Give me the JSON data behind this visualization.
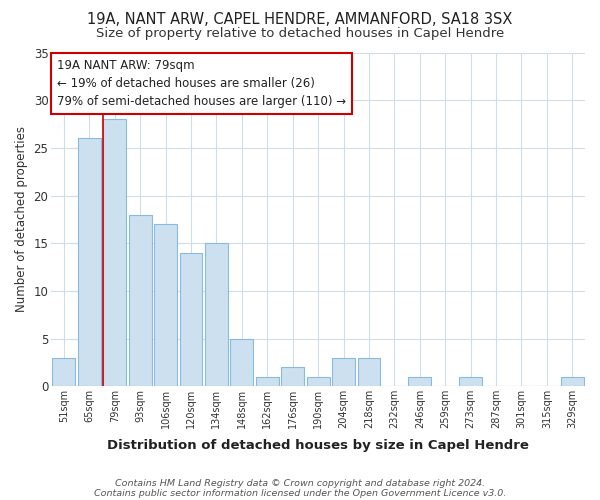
{
  "title": "19A, NANT ARW, CAPEL HENDRE, AMMANFORD, SA18 3SX",
  "subtitle": "Size of property relative to detached houses in Capel Hendre",
  "xlabel": "Distribution of detached houses by size in Capel Hendre",
  "ylabel": "Number of detached properties",
  "categories": [
    "51sqm",
    "65sqm",
    "79sqm",
    "93sqm",
    "106sqm",
    "120sqm",
    "134sqm",
    "148sqm",
    "162sqm",
    "176sqm",
    "190sqm",
    "204sqm",
    "218sqm",
    "232sqm",
    "246sqm",
    "259sqm",
    "273sqm",
    "287sqm",
    "301sqm",
    "315sqm",
    "329sqm"
  ],
  "values": [
    3,
    26,
    28,
    18,
    17,
    14,
    15,
    5,
    1,
    2,
    1,
    3,
    3,
    0,
    1,
    0,
    1,
    0,
    0,
    0,
    1
  ],
  "bar_facecolor": "#cce0f0",
  "bar_edgecolor": "#88bbdd",
  "highlight_index": 2,
  "highlight_line_color": "#cc0000",
  "ylim": [
    0,
    35
  ],
  "yticks": [
    0,
    5,
    10,
    15,
    20,
    25,
    30,
    35
  ],
  "annotation_title": "19A NANT ARW: 79sqm",
  "annotation_line1": "← 19% of detached houses are smaller (26)",
  "annotation_line2": "79% of semi-detached houses are larger (110) →",
  "footer1": "Contains HM Land Registry data © Crown copyright and database right 2024.",
  "footer2": "Contains public sector information licensed under the Open Government Licence v3.0.",
  "background_color": "#ffffff",
  "plot_background_color": "#ffffff",
  "grid_color": "#d0dce8",
  "title_fontsize": 10.5,
  "subtitle_fontsize": 9.5,
  "annotation_box_edge_color": "#cc0000",
  "annotation_box_face_color": "#ffffff"
}
